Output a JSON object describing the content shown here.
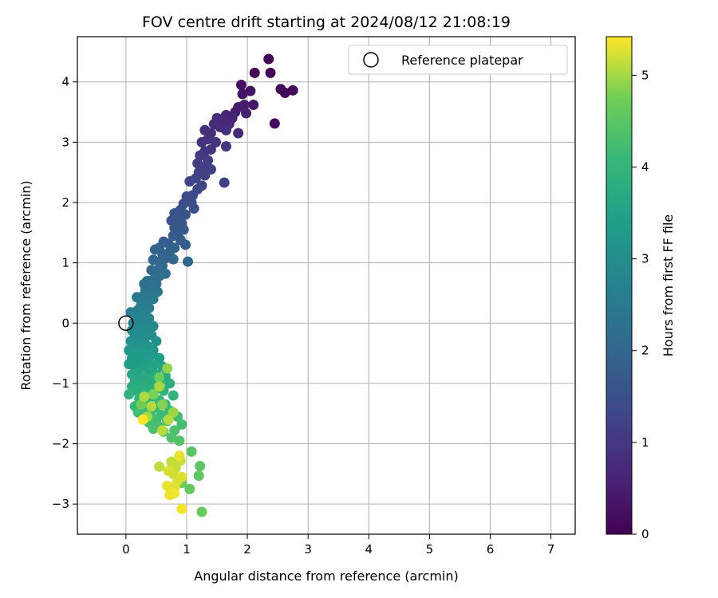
{
  "chart_data": {
    "type": "scatter",
    "title": "FOV centre drift starting at 2024/08/12 21:08:19",
    "xlabel": "Angular distance from reference (arcmin)",
    "ylabel": "Rotation from reference (arcmin)",
    "xlim": [
      -0.8,
      7.4
    ],
    "ylim": [
      -3.5,
      4.75
    ],
    "xticks": [
      0,
      1,
      2,
      3,
      4,
      5,
      6,
      7
    ],
    "yticks": [
      -3,
      -2,
      -1,
      0,
      1,
      2,
      3,
      4
    ],
    "grid": true,
    "legend": {
      "position": "top-right",
      "entries": [
        "Reference platepar"
      ]
    },
    "reference_point": {
      "x": 0,
      "y": 0,
      "label": "Reference platepar"
    },
    "colorbar": {
      "label": "Hours from first FF file",
      "range": [
        0,
        5.42
      ],
      "ticks": [
        0,
        1,
        2,
        3,
        4,
        5
      ],
      "colormap": "viridis"
    },
    "points": [
      [
        2.35,
        4.38,
        0.0
      ],
      [
        2.12,
        4.15,
        0.05
      ],
      [
        2.38,
        4.15,
        0.08
      ],
      [
        2.55,
        3.88,
        0.1
      ],
      [
        2.62,
        3.82,
        0.12
      ],
      [
        2.75,
        3.86,
        0.14
      ],
      [
        2.45,
        3.31,
        0.16
      ],
      [
        1.9,
        3.95,
        0.25
      ],
      [
        2.05,
        3.85,
        0.3
      ],
      [
        1.92,
        3.8,
        0.33
      ],
      [
        2.1,
        3.62,
        0.36
      ],
      [
        1.95,
        3.62,
        0.4
      ],
      [
        1.85,
        3.58,
        0.45
      ],
      [
        1.8,
        3.5,
        0.5
      ],
      [
        1.98,
        3.48,
        0.55
      ],
      [
        1.75,
        3.4,
        0.6
      ],
      [
        1.65,
        3.45,
        0.62
      ],
      [
        1.7,
        3.3,
        0.66
      ],
      [
        1.6,
        3.35,
        0.68
      ],
      [
        1.85,
        3.15,
        0.7
      ],
      [
        1.5,
        3.4,
        0.72
      ],
      [
        1.55,
        3.25,
        0.74
      ],
      [
        1.45,
        3.3,
        0.76
      ],
      [
        1.65,
        3.2,
        0.78
      ],
      [
        1.4,
        3.15,
        0.8
      ],
      [
        1.3,
        3.2,
        0.84
      ],
      [
        1.35,
        3.05,
        0.88
      ],
      [
        1.48,
        3.0,
        0.9
      ],
      [
        1.25,
        3.0,
        0.92
      ],
      [
        1.4,
        2.88,
        0.95
      ],
      [
        1.65,
        2.93,
        0.97
      ],
      [
        1.3,
        2.85,
        1.0
      ],
      [
        1.22,
        2.78,
        1.03
      ],
      [
        1.18,
        2.65,
        1.06
      ],
      [
        1.35,
        2.7,
        1.08
      ],
      [
        1.28,
        2.58,
        1.1
      ],
      [
        1.2,
        2.5,
        1.14
      ],
      [
        1.4,
        2.55,
        1.16
      ],
      [
        1.3,
        2.45,
        1.2
      ],
      [
        1.62,
        2.33,
        1.22
      ],
      [
        1.15,
        2.4,
        1.25
      ],
      [
        1.25,
        2.28,
        1.28
      ],
      [
        1.05,
        2.35,
        1.3
      ],
      [
        1.18,
        2.22,
        1.33
      ],
      [
        1.1,
        2.12,
        1.36
      ],
      [
        1.0,
        2.1,
        1.4
      ],
      [
        1.08,
        2.0,
        1.44
      ],
      [
        0.95,
        1.98,
        1.48
      ],
      [
        1.12,
        1.9,
        1.5
      ],
      [
        0.9,
        1.88,
        1.52
      ],
      [
        0.98,
        1.8,
        1.55
      ],
      [
        0.8,
        1.82,
        1.58
      ],
      [
        0.85,
        1.72,
        1.6
      ],
      [
        0.75,
        1.7,
        1.62
      ],
      [
        0.92,
        1.65,
        1.65
      ],
      [
        0.8,
        1.58,
        1.68
      ],
      [
        0.95,
        1.55,
        1.7
      ],
      [
        0.85,
        1.48,
        1.72
      ],
      [
        0.78,
        1.45,
        1.75
      ],
      [
        0.9,
        1.38,
        1.78
      ],
      [
        0.98,
        1.3,
        1.8
      ],
      [
        0.7,
        1.32,
        1.82
      ],
      [
        0.62,
        1.35,
        1.84
      ],
      [
        0.8,
        1.25,
        1.86
      ],
      [
        0.55,
        1.25,
        1.88
      ],
      [
        0.72,
        1.18,
        1.9
      ],
      [
        0.6,
        1.15,
        1.92
      ],
      [
        0.48,
        1.22,
        1.94
      ],
      [
        0.66,
        1.08,
        1.96
      ],
      [
        0.78,
        1.06,
        1.98
      ],
      [
        1.02,
        1.02,
        2.0
      ],
      [
        0.55,
        1.02,
        2.02
      ],
      [
        0.45,
        1.05,
        2.05
      ],
      [
        0.6,
        0.95,
        2.08
      ],
      [
        0.52,
        0.88,
        2.1
      ],
      [
        0.42,
        0.88,
        2.12
      ],
      [
        0.65,
        0.82,
        2.15
      ],
      [
        0.55,
        0.78,
        2.18
      ],
      [
        0.45,
        0.72,
        2.2
      ],
      [
        0.35,
        0.7,
        2.22
      ],
      [
        0.5,
        0.65,
        2.25
      ],
      [
        0.3,
        0.65,
        2.28
      ],
      [
        0.42,
        0.58,
        2.3
      ],
      [
        0.32,
        0.55,
        2.33
      ],
      [
        0.52,
        0.52,
        2.36
      ],
      [
        0.4,
        0.48,
        2.4
      ],
      [
        0.28,
        0.45,
        2.42
      ],
      [
        0.18,
        0.43,
        2.45
      ],
      [
        0.45,
        0.4,
        2.48
      ],
      [
        0.35,
        0.35,
        2.5
      ],
      [
        0.25,
        0.3,
        2.53
      ],
      [
        0.38,
        0.25,
        2.56
      ],
      [
        0.3,
        0.2,
        2.6
      ],
      [
        0.2,
        0.22,
        2.63
      ],
      [
        0.08,
        0.18,
        2.66
      ],
      [
        0.28,
        0.12,
        2.7
      ],
      [
        0.18,
        0.1,
        2.72
      ],
      [
        0.38,
        0.08,
        2.75
      ],
      [
        0.22,
        0.02,
        2.78
      ],
      [
        0.12,
        0.0,
        2.8
      ],
      [
        0.3,
        -0.02,
        2.82
      ],
      [
        0.45,
        -0.05,
        2.85
      ],
      [
        0.2,
        -0.08,
        2.88
      ],
      [
        0.1,
        -0.12,
        2.9
      ],
      [
        0.35,
        -0.12,
        2.92
      ],
      [
        0.25,
        -0.18,
        2.95
      ],
      [
        0.15,
        -0.22,
        2.98
      ],
      [
        0.42,
        -0.2,
        3.0
      ],
      [
        0.08,
        -0.3,
        3.02
      ],
      [
        0.3,
        -0.28,
        3.05
      ],
      [
        0.2,
        -0.35,
        3.08
      ],
      [
        0.5,
        -0.3,
        3.1
      ],
      [
        0.12,
        -0.4,
        3.12
      ],
      [
        0.35,
        -0.38,
        3.15
      ],
      [
        0.25,
        -0.45,
        3.18
      ],
      [
        0.05,
        -0.45,
        3.2
      ],
      [
        0.45,
        -0.45,
        3.22
      ],
      [
        0.15,
        -0.5,
        3.25
      ],
      [
        0.3,
        -0.52,
        3.28
      ],
      [
        0.4,
        -0.55,
        3.3
      ],
      [
        0.1,
        -0.58,
        3.32
      ],
      [
        0.22,
        -0.6,
        3.35
      ],
      [
        0.55,
        -0.58,
        3.38
      ],
      [
        0.35,
        -0.65,
        3.4
      ],
      [
        0.05,
        -0.68,
        3.42
      ],
      [
        0.15,
        -0.72,
        3.45
      ],
      [
        0.28,
        -0.72,
        3.48
      ],
      [
        0.45,
        -0.7,
        3.5
      ],
      [
        0.6,
        -0.72,
        3.52
      ],
      [
        0.2,
        -0.8,
        3.55
      ],
      [
        0.38,
        -0.82,
        3.58
      ],
      [
        0.1,
        -0.85,
        3.6
      ],
      [
        0.5,
        -0.85,
        3.62
      ],
      [
        0.28,
        -0.9,
        3.65
      ],
      [
        0.65,
        -0.88,
        3.68
      ],
      [
        0.15,
        -0.95,
        3.7
      ],
      [
        0.4,
        -0.95,
        3.72
      ],
      [
        0.55,
        -0.98,
        3.74
      ],
      [
        0.25,
        -1.02,
        3.76
      ],
      [
        0.1,
        -1.05,
        3.78
      ],
      [
        0.72,
        -1.0,
        3.8
      ],
      [
        0.35,
        -1.08,
        3.82
      ],
      [
        0.48,
        -1.1,
        3.84
      ],
      [
        0.18,
        -1.12,
        3.86
      ],
      [
        0.62,
        -1.12,
        3.88
      ],
      [
        0.05,
        -1.18,
        3.9
      ],
      [
        0.3,
        -1.18,
        3.92
      ],
      [
        0.42,
        -1.22,
        3.94
      ],
      [
        0.78,
        -1.2,
        3.96
      ],
      [
        0.22,
        -1.25,
        3.98
      ],
      [
        0.55,
        -1.28,
        4.0
      ],
      [
        0.35,
        -1.32,
        4.02
      ],
      [
        0.65,
        -1.35,
        4.04
      ],
      [
        0.15,
        -1.38,
        4.06
      ],
      [
        0.48,
        -1.4,
        4.08
      ],
      [
        0.28,
        -1.45,
        4.1
      ],
      [
        0.72,
        -1.45,
        4.12
      ],
      [
        0.4,
        -1.5,
        4.14
      ],
      [
        0.58,
        -1.52,
        4.16
      ],
      [
        0.2,
        -1.48,
        4.18
      ],
      [
        0.85,
        -1.55,
        4.2
      ],
      [
        0.5,
        -1.6,
        4.22
      ],
      [
        0.68,
        -1.62,
        4.24
      ],
      [
        0.38,
        -1.65,
        4.26
      ],
      [
        0.92,
        -1.68,
        4.28
      ],
      [
        0.55,
        -1.72,
        4.3
      ],
      [
        0.45,
        -1.75,
        4.32
      ],
      [
        0.8,
        -1.78,
        4.35
      ],
      [
        0.62,
        -1.8,
        4.38
      ],
      [
        0.75,
        -1.9,
        4.4
      ],
      [
        0.88,
        -1.95,
        4.42
      ],
      [
        0.68,
        -1.62,
        4.45
      ],
      [
        1.08,
        -2.13,
        4.48
      ],
      [
        1.22,
        -2.37,
        4.52
      ],
      [
        1.2,
        -2.53,
        4.55
      ],
      [
        1.05,
        -2.75,
        4.6
      ],
      [
        1.25,
        -3.13,
        4.62
      ],
      [
        0.92,
        -2.65,
        4.65
      ],
      [
        0.55,
        -0.9,
        4.7
      ],
      [
        0.25,
        -1.35,
        4.75
      ],
      [
        0.45,
        -1.18,
        4.8
      ],
      [
        0.6,
        -1.35,
        4.85
      ],
      [
        0.68,
        -0.75,
        4.9
      ],
      [
        0.78,
        -1.48,
        4.95
      ],
      [
        0.35,
        -1.55,
        5.0
      ],
      [
        0.55,
        -1.05,
        5.02
      ],
      [
        0.3,
        -1.22,
        5.04
      ],
      [
        0.7,
        -1.6,
        5.06
      ],
      [
        0.42,
        -1.38,
        5.08
      ],
      [
        0.6,
        -1.78,
        5.1
      ],
      [
        0.55,
        -2.38,
        5.12
      ],
      [
        0.75,
        -2.3,
        5.14
      ],
      [
        0.82,
        -2.4,
        5.16
      ],
      [
        0.9,
        -2.28,
        5.18
      ],
      [
        0.78,
        -2.5,
        5.2
      ],
      [
        0.85,
        -2.62,
        5.22
      ],
      [
        0.7,
        -2.45,
        5.24
      ],
      [
        0.92,
        -2.55,
        5.26
      ],
      [
        0.8,
        -2.72,
        5.28
      ],
      [
        0.68,
        -2.7,
        5.3
      ],
      [
        0.88,
        -2.2,
        5.32
      ],
      [
        0.72,
        -2.85,
        5.34
      ],
      [
        0.8,
        -2.82,
        5.36
      ],
      [
        0.92,
        -3.08,
        5.38
      ],
      [
        0.28,
        -1.6,
        5.4
      ]
    ]
  }
}
